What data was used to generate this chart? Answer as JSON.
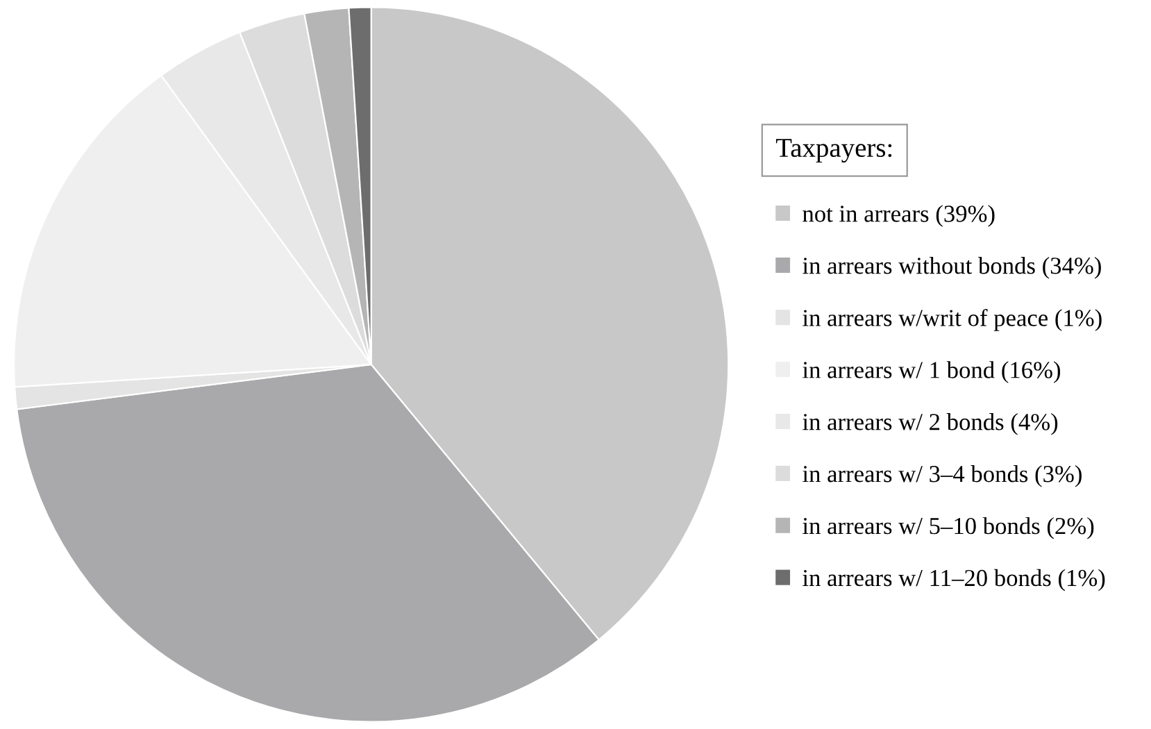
{
  "chart_data": {
    "type": "pie",
    "legend_title": "Taxpayers:",
    "legend": "right",
    "categories": [
      "not in arrears (39%)",
      "in arrears without bonds (34%)",
      "in arrears w/writ of peace (1%)",
      "in arrears w/ 1 bond (16%)",
      "in arrears w/ 2 bonds (4%)",
      "in arrears w/ 3–4 bonds (3%)",
      "in arrears w/ 5–10 bonds (2%)",
      "in arrears w/ 11–20 bonds (1%)"
    ],
    "values": [
      39,
      34,
      1,
      16,
      4,
      3,
      2,
      1
    ],
    "colors": [
      "#c8c8c9",
      "#a9a9ab",
      "#e4e4e4",
      "#efeff0",
      "#e8e8e8",
      "#dcdcdd",
      "#b5b5b5",
      "#6d6d6e"
    ]
  }
}
